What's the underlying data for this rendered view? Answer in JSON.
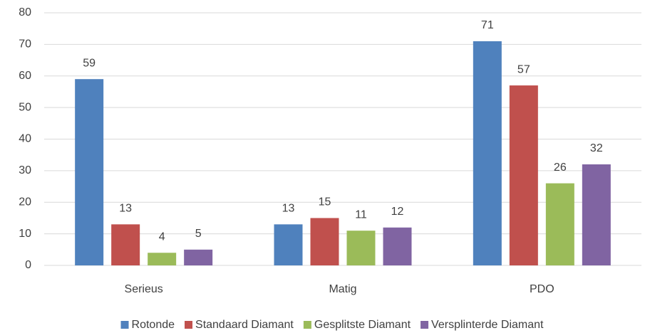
{
  "chart_data": {
    "type": "bar",
    "categories": [
      "Serieus",
      "Matig",
      "PDO"
    ],
    "series": [
      {
        "name": "Rotonde",
        "color": "#4f81bd",
        "values": [
          59,
          13,
          71
        ]
      },
      {
        "name": "Standaard Diamant",
        "color": "#c0504d",
        "values": [
          13,
          15,
          57
        ]
      },
      {
        "name": "Gesplitste Diamant",
        "color": "#9bbb59",
        "values": [
          4,
          11,
          26
        ]
      },
      {
        "name": "Versplinterde Diamant",
        "color": "#8064a2",
        "values": [
          5,
          12,
          32
        ]
      }
    ],
    "ylim": [
      0,
      80
    ],
    "yticks": [
      0,
      10,
      20,
      30,
      40,
      50,
      60,
      70,
      80
    ],
    "grid": true,
    "legend": "bottom"
  }
}
